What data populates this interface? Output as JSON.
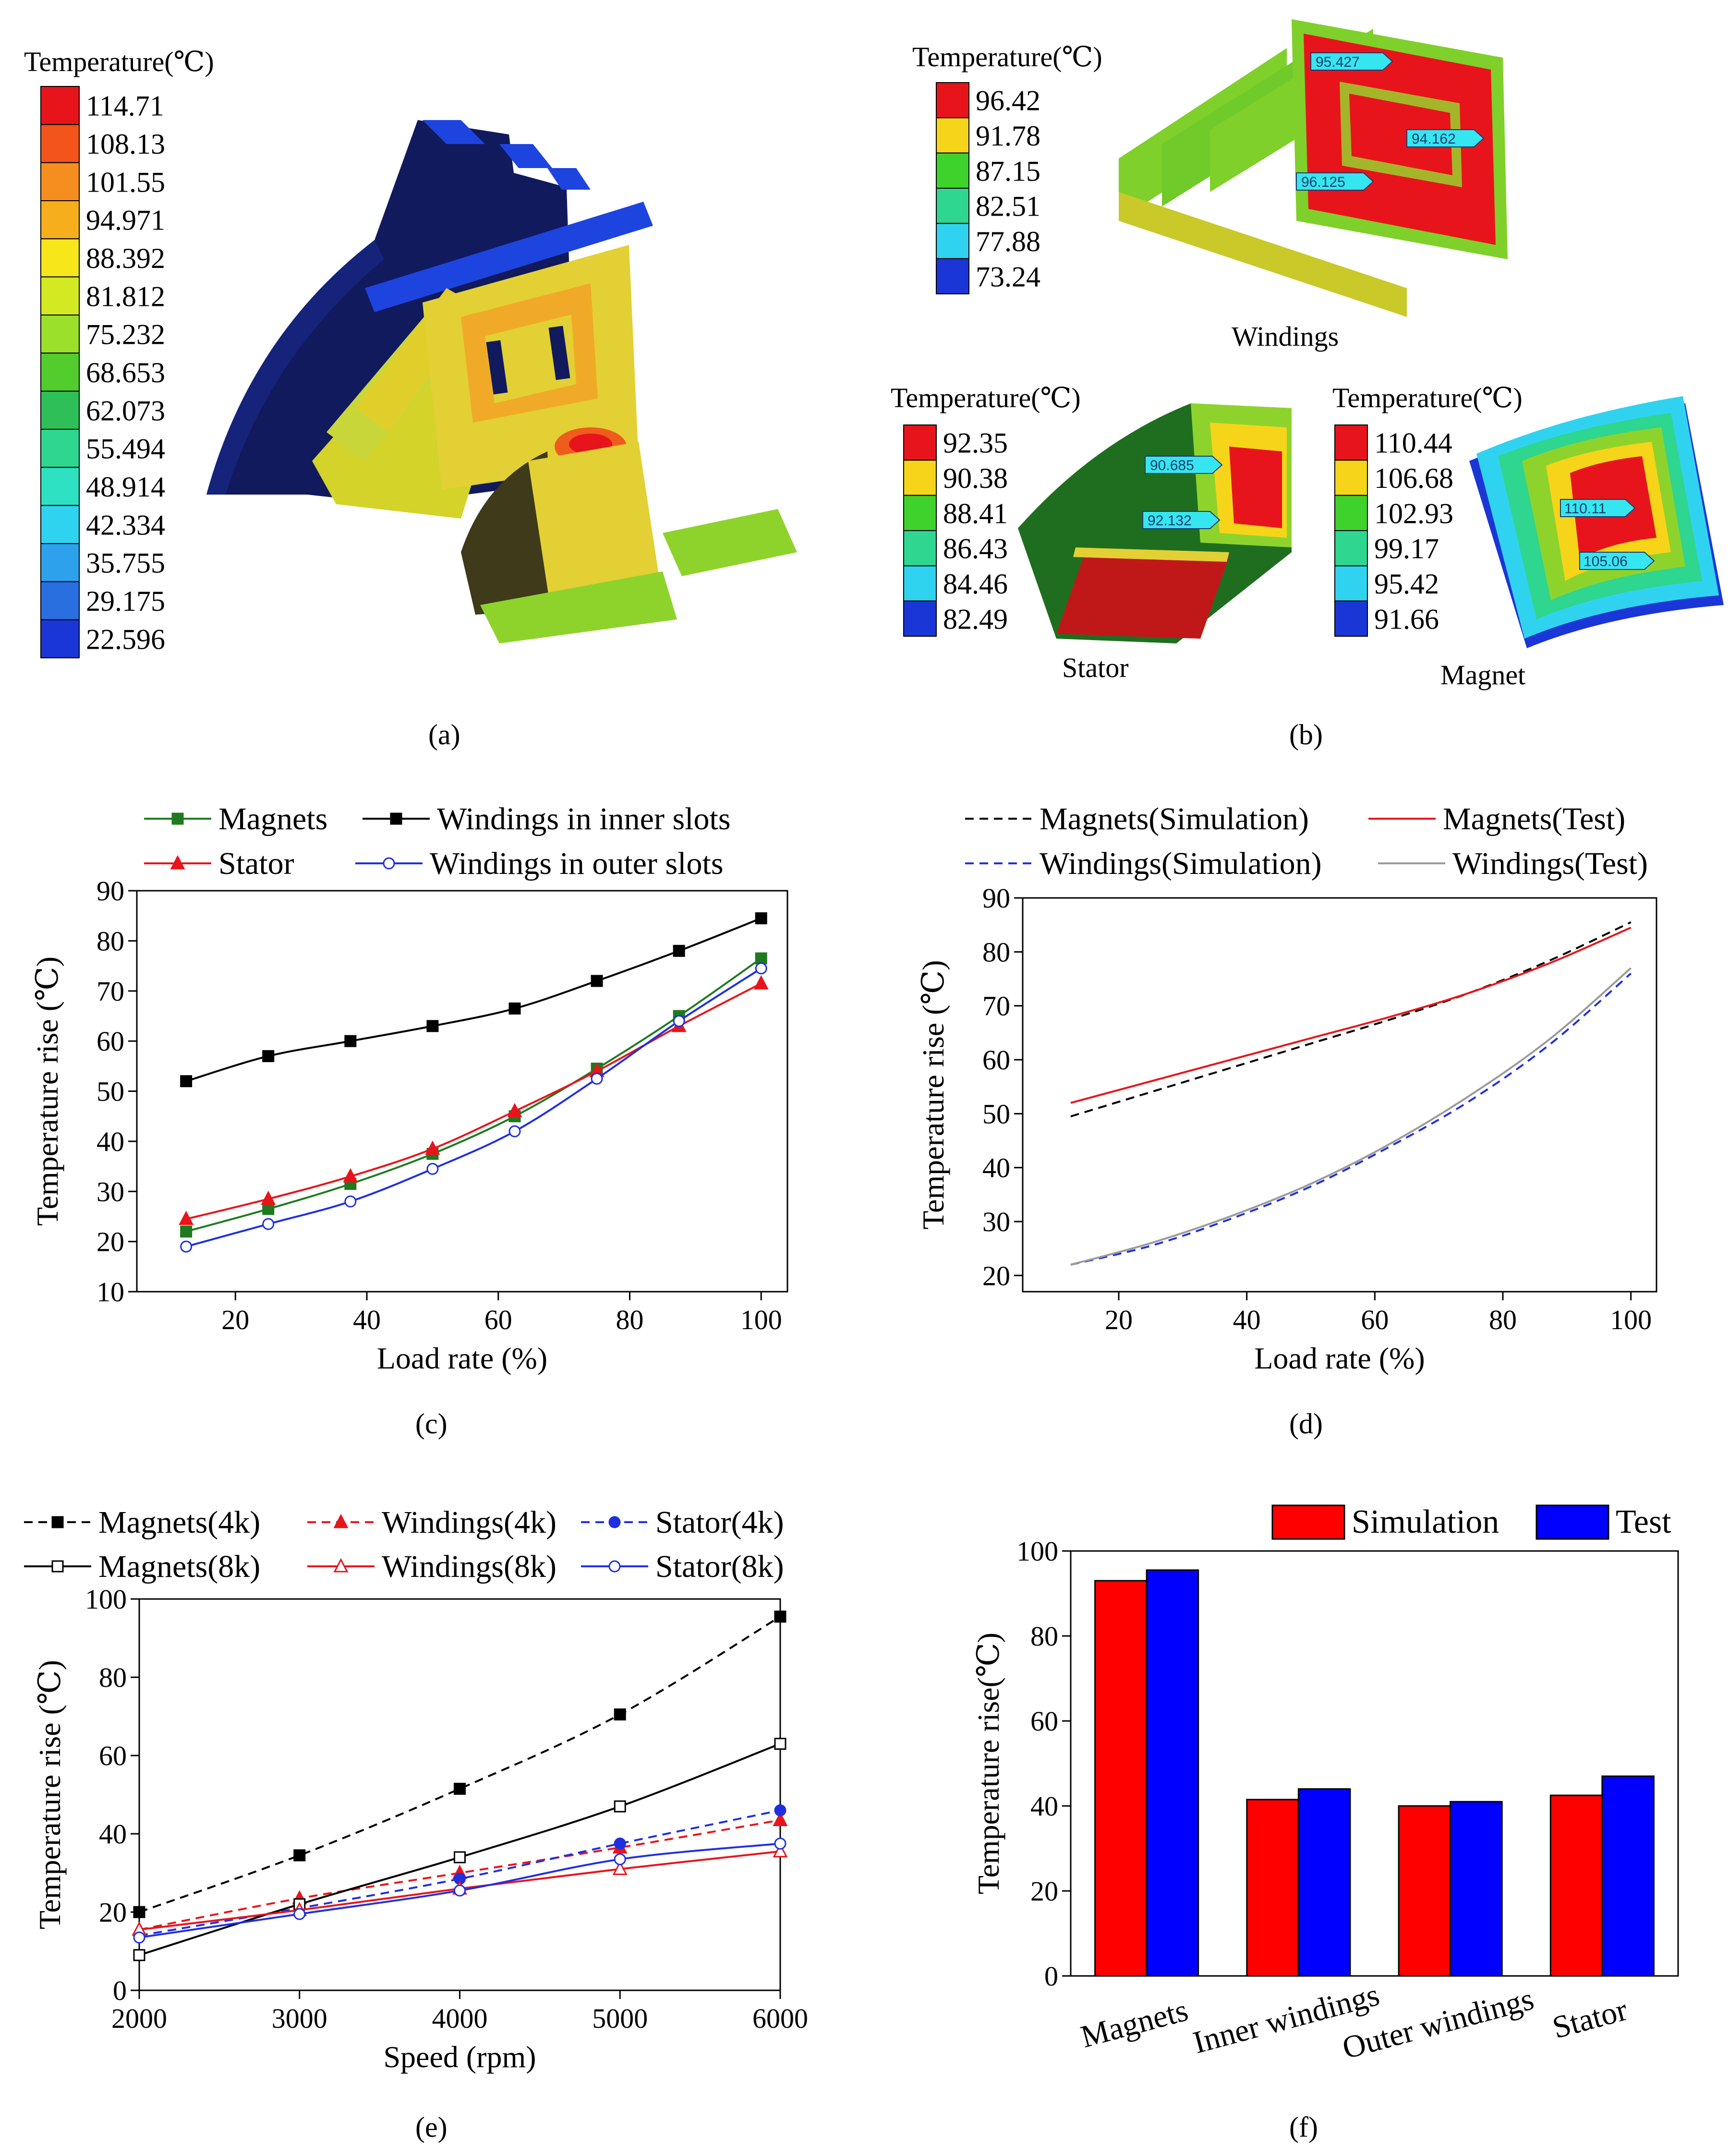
{
  "panels": {
    "a": {
      "tag": "(a)",
      "legend_title": "Temperature(℃)",
      "legend_values": [
        "114.71",
        "108.13",
        "101.55",
        "94.971",
        "88.392",
        "81.812",
        "75.232",
        "68.653",
        "62.073",
        "55.494",
        "48.914",
        "42.334",
        "35.755",
        "29.175",
        "22.596"
      ],
      "legend_colors": [
        "#e8141b",
        "#f2541c",
        "#f58e1e",
        "#f7ae1c",
        "#f6e61a",
        "#d3ea22",
        "#9be02a",
        "#53cc2e",
        "#2ebf58",
        "#2ed68f",
        "#2ee1c2",
        "#30d3ef",
        "#2ea1ec",
        "#2a6fe0",
        "#1a36d6"
      ]
    },
    "b": {
      "tag": "(b)",
      "windings": {
        "legend_title": "Temperature(℃)",
        "legend_values": [
          "96.42",
          "91.78",
          "87.15",
          "82.51",
          "77.88",
          "73.24"
        ],
        "legend_colors": [
          "#e8141b",
          "#f6d41a",
          "#3fd22c",
          "#2ed68f",
          "#30d3ef",
          "#1a36d6"
        ],
        "label": "Windings",
        "probes": [
          "95.427",
          "94.162",
          "96.125"
        ]
      },
      "stator": {
        "legend_title": "Temperature(℃)",
        "legend_values": [
          "92.35",
          "90.38",
          "88.41",
          "86.43",
          "84.46",
          "82.49"
        ],
        "legend_colors": [
          "#e8141b",
          "#f6d41a",
          "#3fd22c",
          "#2ed68f",
          "#30d3ef",
          "#1a36d6"
        ],
        "label": "Stator",
        "probes": [
          "90.685",
          "92.132"
        ]
      },
      "magnet": {
        "legend_title": "Temperature(℃)",
        "legend_values": [
          "110.44",
          "106.68",
          "102.93",
          "99.17",
          "95.42",
          "91.66"
        ],
        "legend_colors": [
          "#e8141b",
          "#f6d41a",
          "#3fd22c",
          "#2ed68f",
          "#30d3ef",
          "#1a36d6"
        ],
        "label": "Magnet",
        "probes": [
          "110.11",
          "105.06"
        ]
      }
    },
    "c": {
      "tag": "(c)"
    },
    "d": {
      "tag": "(d)"
    },
    "e": {
      "tag": "(e)"
    },
    "f": {
      "tag": "(f)"
    }
  },
  "chart_data": [
    {
      "id": "c",
      "type": "line",
      "xlabel": "Load rate (%)",
      "ylabel": "Temperature rise (℃)",
      "xlim": [
        5,
        104
      ],
      "ylim": [
        10,
        90
      ],
      "xticks": [
        20,
        40,
        60,
        80,
        100
      ],
      "yticks": [
        10,
        20,
        30,
        40,
        50,
        60,
        70,
        80,
        90
      ],
      "legend_position": "top",
      "x": [
        12.5,
        25,
        37.5,
        50,
        62.5,
        75,
        87.5,
        100
      ],
      "series": [
        {
          "name": "Magnets",
          "color": "#1f7a1f",
          "marker": "square-filled",
          "dash": "solid",
          "values": [
            22,
            26.5,
            31.5,
            37.5,
            45,
            54.5,
            65,
            76.5
          ]
        },
        {
          "name": "Windings in inner slots",
          "color": "#000000",
          "marker": "square-filled",
          "dash": "solid",
          "values": [
            52,
            57,
            60,
            63,
            66.5,
            72,
            78,
            84.5
          ]
        },
        {
          "name": "Stator",
          "color": "#e8141b",
          "marker": "triangle-filled",
          "dash": "solid",
          "values": [
            24.5,
            28.5,
            33,
            38.5,
            46,
            54,
            63,
            71.5
          ]
        },
        {
          "name": "Windings in outer slots",
          "color": "#1f2fe0",
          "marker": "circle-open",
          "dash": "solid",
          "values": [
            19,
            23.5,
            28,
            34.5,
            42,
            52.5,
            64,
            74.5
          ]
        }
      ]
    },
    {
      "id": "d",
      "type": "line",
      "xlabel": "Load rate (%)",
      "ylabel": "Temperature rise (℃)",
      "xlim": [
        5,
        104
      ],
      "ylim": [
        17,
        90
      ],
      "xticks": [
        20,
        40,
        60,
        80,
        100
      ],
      "yticks": [
        20,
        30,
        40,
        50,
        60,
        70,
        80,
        90
      ],
      "legend_position": "top",
      "x": [
        12.5,
        25,
        37.5,
        50,
        62.5,
        75,
        87.5,
        100
      ],
      "series": [
        {
          "name": "Magnets(Simulation)",
          "color": "#000000",
          "dash": "dashed",
          "values": [
            49.5,
            54,
            58.5,
            63,
            67.5,
            72.5,
            78.5,
            85.5
          ]
        },
        {
          "name": "Magnets(Test)",
          "color": "#e8141b",
          "dash": "solid",
          "values": [
            52,
            56,
            60,
            64,
            68,
            72.5,
            78,
            84.5
          ]
        },
        {
          "name": "Windings(Simulation)",
          "color": "#1f2fe0",
          "dash": "dashed",
          "values": [
            22,
            25.5,
            30.5,
            36.5,
            44,
            52.5,
            63,
            76
          ]
        },
        {
          "name": "Windings(Test)",
          "color": "#9a9a9a",
          "dash": "solid",
          "values": [
            22,
            26,
            31,
            37,
            44.5,
            53.5,
            64,
            77
          ]
        }
      ]
    },
    {
      "id": "e",
      "type": "line",
      "xlabel": "Speed (rpm)",
      "ylabel": "Temperature rise (℃)",
      "xlim": [
        2000,
        6000
      ],
      "ylim": [
        0,
        100
      ],
      "xticks": [
        2000,
        3000,
        4000,
        5000,
        6000
      ],
      "yticks": [
        0,
        20,
        40,
        60,
        80,
        100
      ],
      "legend_position": "top",
      "x": [
        2000,
        3000,
        4000,
        5000,
        6000
      ],
      "series": [
        {
          "name": "Magnets(4k)",
          "color": "#000000",
          "dash": "dashed",
          "marker": "square-filled",
          "values": [
            20,
            34.5,
            51.5,
            70.5,
            95.5
          ]
        },
        {
          "name": "Windings(4k)",
          "color": "#e8141b",
          "dash": "dashed",
          "marker": "triangle-filled",
          "values": [
            15.5,
            23.5,
            30,
            36.5,
            43.5
          ]
        },
        {
          "name": "Stator(4k)",
          "color": "#1f2fe0",
          "dash": "dashed",
          "marker": "circle-filled",
          "values": [
            14,
            21,
            28.5,
            37.5,
            46
          ]
        },
        {
          "name": "Magnets(8k)",
          "color": "#000000",
          "dash": "solid",
          "marker": "square-open",
          "values": [
            9,
            22,
            34,
            47,
            63
          ]
        },
        {
          "name": "Windings(8k)",
          "color": "#e8141b",
          "dash": "solid",
          "marker": "triangle-open",
          "values": [
            15.5,
            20.5,
            26,
            31,
            35.5
          ]
        },
        {
          "name": "Stator(8k)",
          "color": "#1f2fe0",
          "dash": "solid",
          "marker": "circle-open",
          "values": [
            13.5,
            19.5,
            25.5,
            33.5,
            37.5
          ]
        }
      ]
    },
    {
      "id": "f",
      "type": "bar",
      "ylabel": "Temperature rise(℃)",
      "ylim": [
        0,
        100
      ],
      "yticks": [
        0,
        20,
        40,
        60,
        80,
        100
      ],
      "legend_position": "top",
      "categories": [
        "Magnets",
        "Inner windings",
        "Outer windings",
        "Stator"
      ],
      "series": [
        {
          "name": "Simulation",
          "color": "#ff0000",
          "values": [
            93,
            41.5,
            40,
            42.5
          ]
        },
        {
          "name": "Test",
          "color": "#0000ff",
          "values": [
            95.5,
            44,
            41,
            47
          ]
        }
      ]
    }
  ]
}
